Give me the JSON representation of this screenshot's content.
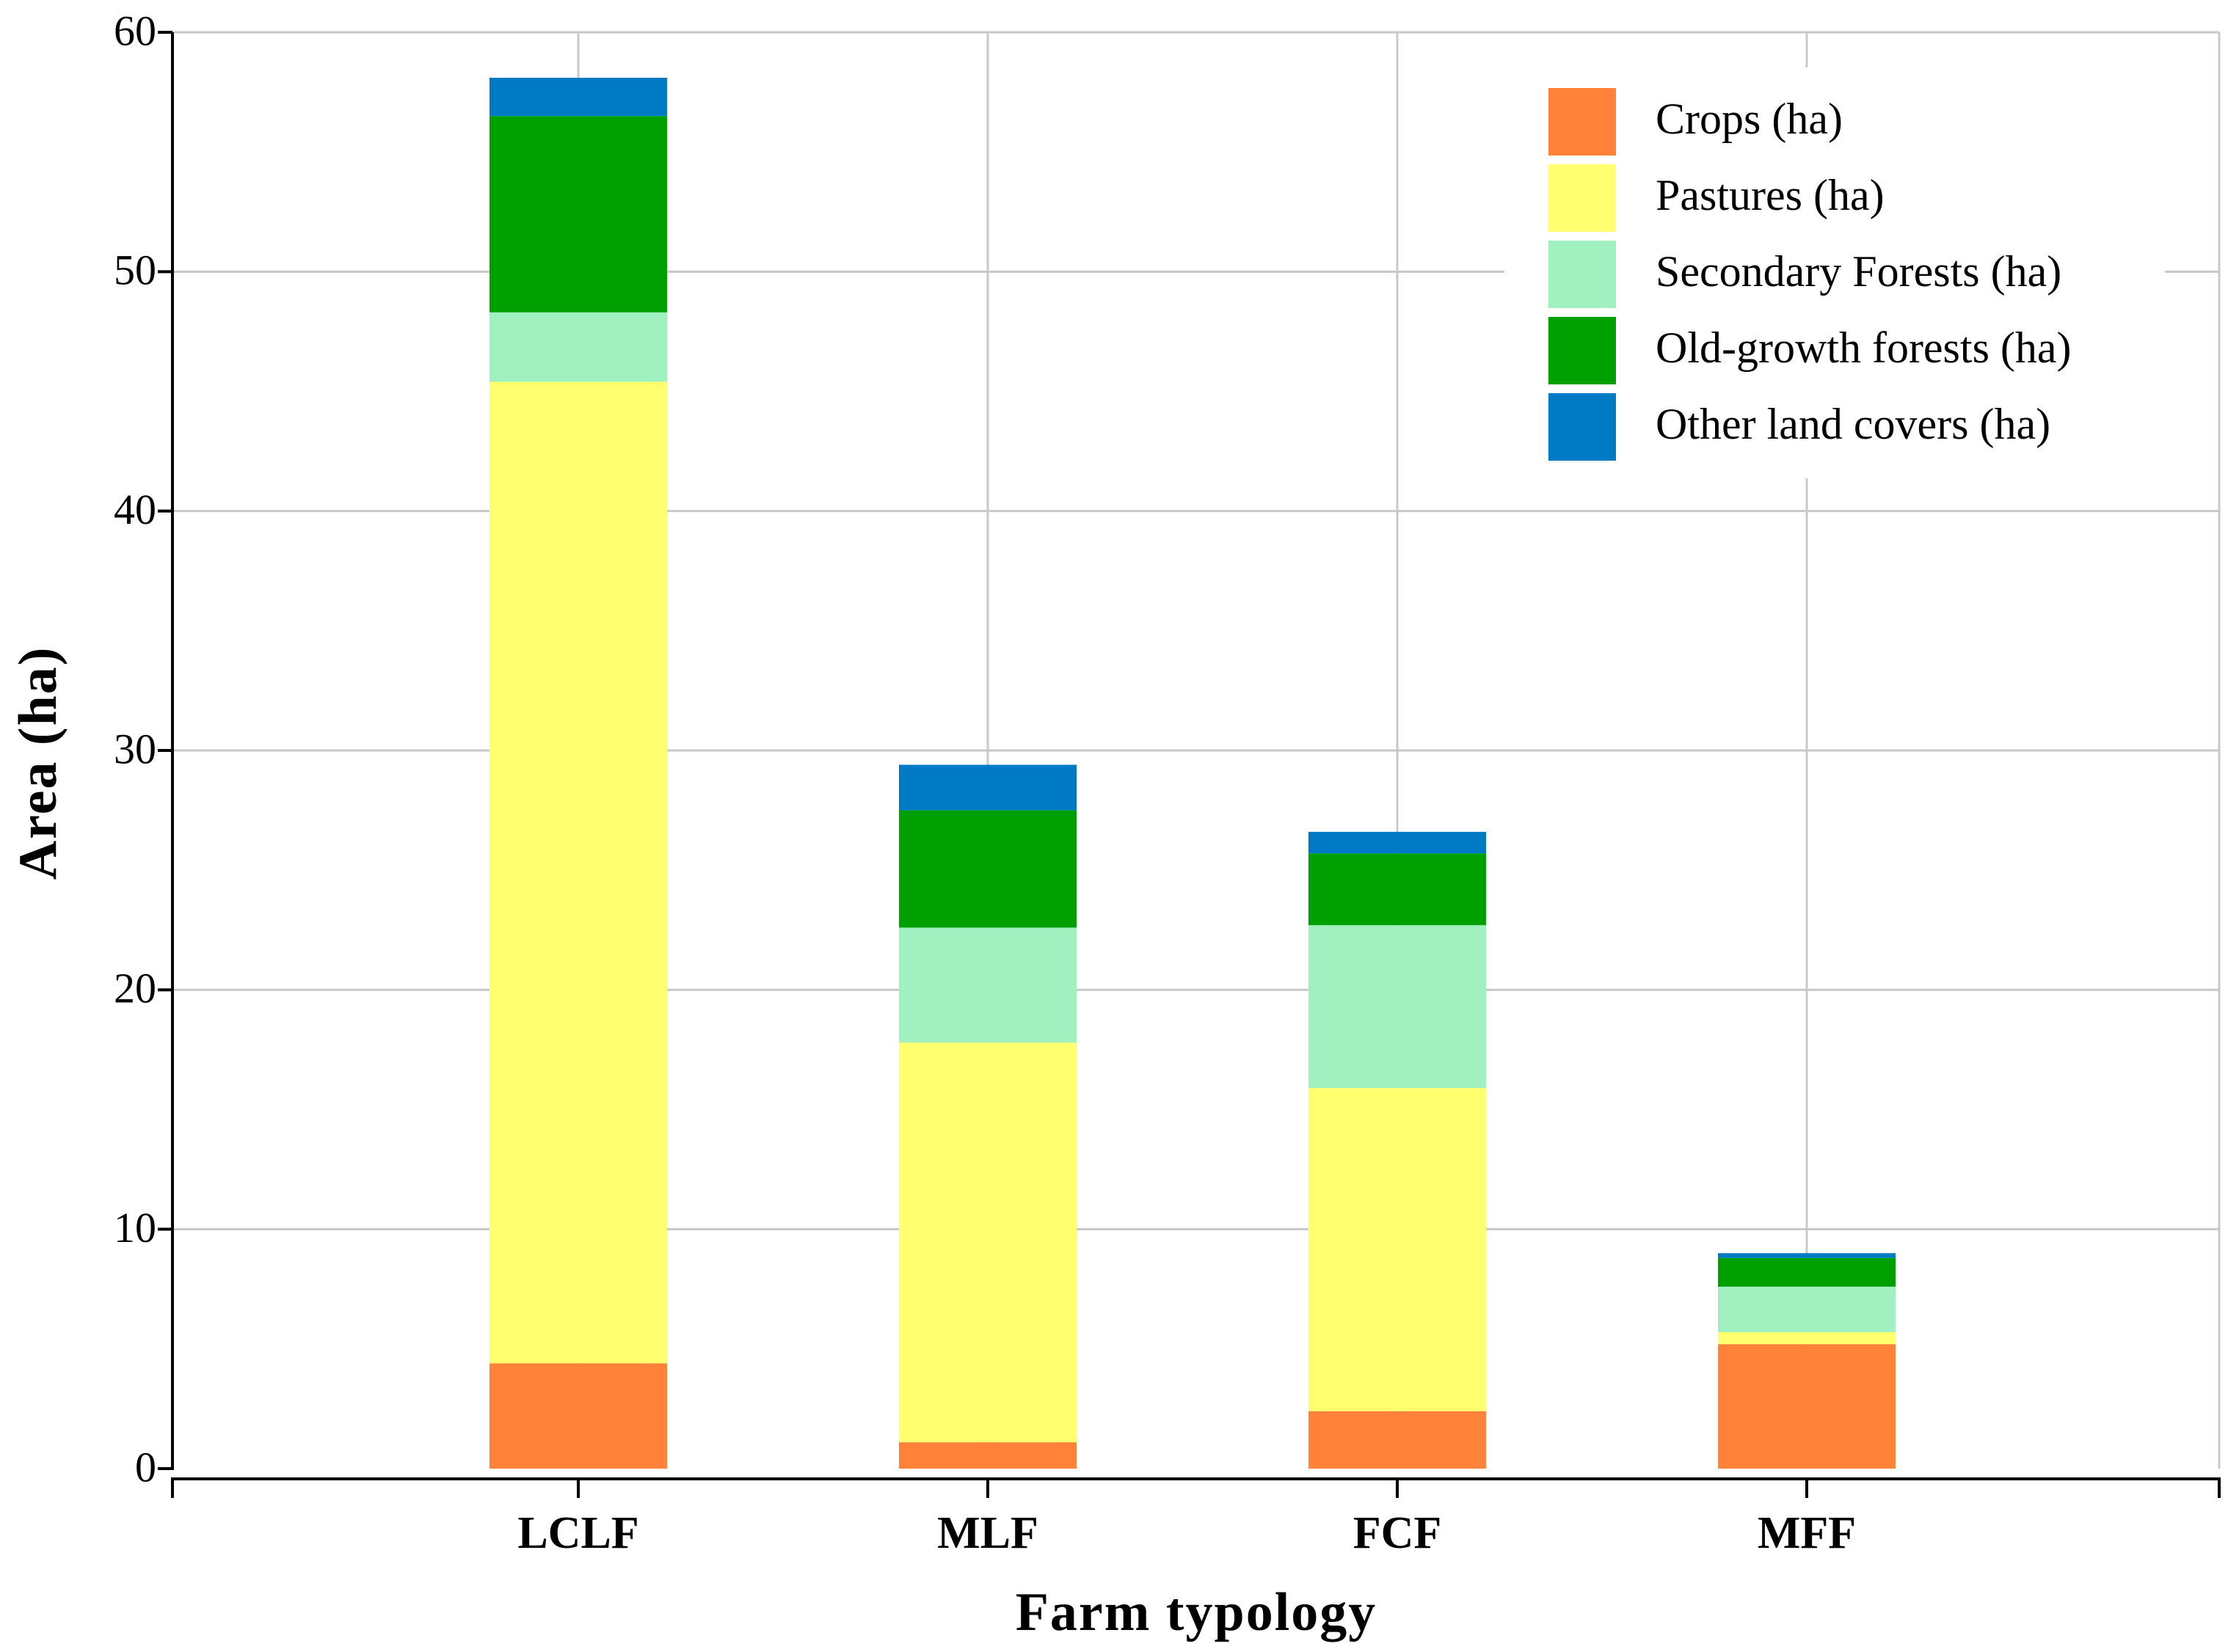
{
  "chart_data": {
    "type": "bar",
    "stacked": true,
    "title": "",
    "xlabel": "Farm typology",
    "ylabel": "Area (ha)",
    "ylim": [
      0,
      60
    ],
    "yticks": [
      0,
      10,
      20,
      30,
      40,
      50,
      60
    ],
    "categories": [
      "LCLF",
      "MLF",
      "FCF",
      "MFF"
    ],
    "grid": true,
    "legend_position": "top-right",
    "series": [
      {
        "name": "Crops (ha)",
        "color": "#ff8238",
        "values": [
          4.4,
          1.1,
          2.4,
          5.2
        ]
      },
      {
        "name": "Pastures (ha)",
        "color": "#ffff70",
        "values": [
          41.0,
          16.7,
          13.5,
          0.5
        ]
      },
      {
        "name": "Secondary Forests (ha)",
        "color": "#a0f0c0",
        "values": [
          2.9,
          4.8,
          6.8,
          1.9
        ]
      },
      {
        "name": "Old-growth forests (ha)",
        "color": "#00a000",
        "values": [
          8.2,
          4.9,
          3.0,
          1.2
        ]
      },
      {
        "name": "Other land covers (ha)",
        "color": "#007ac4",
        "values": [
          1.6,
          1.9,
          0.9,
          0.2
        ]
      }
    ]
  }
}
